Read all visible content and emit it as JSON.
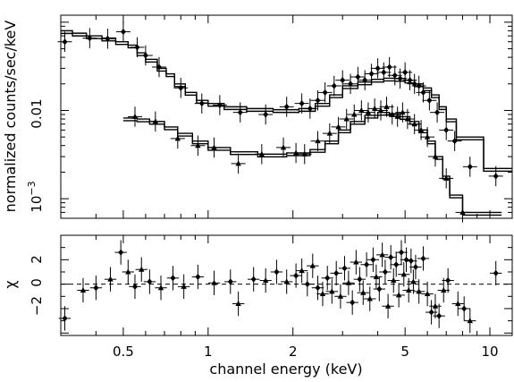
{
  "chart_data": [
    {
      "type": "scatter",
      "panel": "spectrum",
      "title": "",
      "xlabel": "",
      "ylabel": "normalized counts/sec/keV",
      "xscale": "log",
      "yscale": "log",
      "xlim": [
        0.3,
        12.0
      ],
      "ylim": [
        0.0006,
        0.12
      ],
      "y_tick_labels": [
        {
          "value": 0.01,
          "label": "0.01"
        },
        {
          "value": 0.001,
          "label_base": "10",
          "label_exp": "−3"
        }
      ],
      "series": [
        {
          "model_steps": [
            [
              0.3,
              0.08
            ],
            [
              0.33,
              0.075
            ],
            [
              0.37,
              0.07
            ],
            [
              0.42,
              0.066
            ],
            [
              0.47,
              0.06
            ],
            [
              0.52,
              0.055
            ],
            [
              0.56,
              0.045
            ],
            [
              0.6,
              0.038
            ],
            [
              0.66,
              0.03
            ],
            [
              0.71,
              0.026
            ],
            [
              0.76,
              0.02
            ],
            [
              0.83,
              0.016
            ],
            [
              0.91,
              0.013
            ],
            [
              1.0,
              0.012
            ],
            [
              1.14,
              0.011
            ],
            [
              1.37,
              0.0105
            ],
            [
              1.7,
              0.0102
            ],
            [
              2.1,
              0.0105
            ],
            [
              2.4,
              0.012
            ],
            [
              2.7,
              0.015
            ],
            [
              3.0,
              0.019
            ],
            [
              3.4,
              0.021
            ],
            [
              3.8,
              0.0225
            ],
            [
              4.2,
              0.0232
            ],
            [
              4.6,
              0.023
            ],
            [
              5.0,
              0.022
            ],
            [
              5.4,
              0.02
            ],
            [
              5.8,
              0.018
            ],
            [
              6.2,
              0.015
            ],
            [
              6.6,
              0.011
            ],
            [
              7.0,
              0.008
            ],
            [
              7.6,
              0.005
            ],
            [
              9.5,
              0.0022
            ],
            [
              12.0,
              0.0022
            ]
          ],
          "points": [
            {
              "x": 0.31,
              "y": 0.06
            },
            {
              "x": 0.38,
              "y": 0.066
            },
            {
              "x": 0.44,
              "y": 0.065
            },
            {
              "x": 0.5,
              "y": 0.078
            },
            {
              "x": 0.56,
              "y": 0.052
            },
            {
              "x": 0.6,
              "y": 0.042
            },
            {
              "x": 0.67,
              "y": 0.031
            },
            {
              "x": 0.8,
              "y": 0.018
            },
            {
              "x": 0.95,
              "y": 0.012
            },
            {
              "x": 1.1,
              "y": 0.0115
            },
            {
              "x": 1.3,
              "y": 0.0095
            },
            {
              "x": 1.6,
              "y": 0.009
            },
            {
              "x": 1.9,
              "y": 0.011
            },
            {
              "x": 2.15,
              "y": 0.012
            },
            {
              "x": 2.3,
              "y": 0.0105
            },
            {
              "x": 2.45,
              "y": 0.013
            },
            {
              "x": 2.6,
              "y": 0.016
            },
            {
              "x": 2.8,
              "y": 0.019
            },
            {
              "x": 3.0,
              "y": 0.022
            },
            {
              "x": 3.2,
              "y": 0.02
            },
            {
              "x": 3.4,
              "y": 0.024
            },
            {
              "x": 3.6,
              "y": 0.022
            },
            {
              "x": 3.8,
              "y": 0.026
            },
            {
              "x": 4.0,
              "y": 0.03
            },
            {
              "x": 4.2,
              "y": 0.027
            },
            {
              "x": 4.4,
              "y": 0.031
            },
            {
              "x": 4.6,
              "y": 0.025
            },
            {
              "x": 4.8,
              "y": 0.023
            },
            {
              "x": 5.0,
              "y": 0.027
            },
            {
              "x": 5.2,
              "y": 0.022
            },
            {
              "x": 5.4,
              "y": 0.02
            },
            {
              "x": 5.6,
              "y": 0.019
            },
            {
              "x": 5.8,
              "y": 0.016
            },
            {
              "x": 6.1,
              "y": 0.013
            },
            {
              "x": 6.5,
              "y": 0.0095
            },
            {
              "x": 7.0,
              "y": 0.006
            },
            {
              "x": 7.5,
              "y": 0.0045
            },
            {
              "x": 8.5,
              "y": 0.0023
            },
            {
              "x": 10.5,
              "y": 0.0018
            }
          ]
        },
        {
          "model_steps": [
            [
              0.5,
              0.0082
            ],
            [
              0.56,
              0.008
            ],
            [
              0.62,
              0.0075
            ],
            [
              0.7,
              0.0065
            ],
            [
              0.78,
              0.0055
            ],
            [
              0.88,
              0.0045
            ],
            [
              1.0,
              0.0038
            ],
            [
              1.2,
              0.0034
            ],
            [
              1.5,
              0.0032
            ],
            [
              1.9,
              0.0033
            ],
            [
              2.3,
              0.0036
            ],
            [
              2.6,
              0.0045
            ],
            [
              2.9,
              0.006
            ],
            [
              3.2,
              0.0075
            ],
            [
              3.6,
              0.0088
            ],
            [
              4.0,
              0.0095
            ],
            [
              4.4,
              0.0092
            ],
            [
              4.8,
              0.0085
            ],
            [
              5.2,
              0.0075
            ],
            [
              5.6,
              0.006
            ],
            [
              6.0,
              0.0045
            ],
            [
              6.4,
              0.003
            ],
            [
              6.8,
              0.0018
            ],
            [
              7.2,
              0.0011
            ],
            [
              8.0,
              0.0007
            ],
            [
              11.0,
              0.0007
            ]
          ],
          "points": [
            {
              "x": 0.55,
              "y": 0.0085
            },
            {
              "x": 0.65,
              "y": 0.0075
            },
            {
              "x": 0.78,
              "y": 0.0048
            },
            {
              "x": 0.92,
              "y": 0.004
            },
            {
              "x": 1.05,
              "y": 0.0038
            },
            {
              "x": 1.28,
              "y": 0.0025
            },
            {
              "x": 1.55,
              "y": 0.0032
            },
            {
              "x": 1.85,
              "y": 0.0038
            },
            {
              "x": 2.05,
              "y": 0.0033
            },
            {
              "x": 2.2,
              "y": 0.0032
            },
            {
              "x": 2.45,
              "y": 0.0045
            },
            {
              "x": 2.7,
              "y": 0.0055
            },
            {
              "x": 2.9,
              "y": 0.0065
            },
            {
              "x": 3.1,
              "y": 0.008
            },
            {
              "x": 3.3,
              "y": 0.009
            },
            {
              "x": 3.5,
              "y": 0.01
            },
            {
              "x": 3.7,
              "y": 0.0095
            },
            {
              "x": 3.9,
              "y": 0.0105
            },
            {
              "x": 4.1,
              "y": 0.01
            },
            {
              "x": 4.3,
              "y": 0.011
            },
            {
              "x": 4.5,
              "y": 0.009
            },
            {
              "x": 4.7,
              "y": 0.0085
            },
            {
              "x": 4.9,
              "y": 0.0095
            },
            {
              "x": 5.1,
              "y": 0.008
            },
            {
              "x": 5.4,
              "y": 0.007
            },
            {
              "x": 5.7,
              "y": 0.006
            },
            {
              "x": 6.0,
              "y": 0.005
            },
            {
              "x": 6.4,
              "y": 0.003
            },
            {
              "x": 7.0,
              "y": 0.0017
            },
            {
              "x": 8.0,
              "y": 0.0007
            }
          ]
        }
      ]
    },
    {
      "type": "scatter",
      "panel": "residuals",
      "title": "",
      "xlabel": "channel energy (keV)",
      "ylabel": "χ",
      "xscale": "log",
      "xlim": [
        0.3,
        12.0
      ],
      "ylim": [
        -4.2,
        4.0
      ],
      "x_tick_labels": [
        "0.5",
        "1",
        "2",
        "5",
        "10"
      ],
      "x_tick_values": [
        0.5,
        1,
        2,
        5,
        10
      ],
      "y_tick_labels": [
        "−2",
        "0",
        "2"
      ],
      "y_tick_values": [
        -2,
        0,
        2
      ],
      "points": [
        {
          "x": 0.31,
          "y": -2.8
        },
        {
          "x": 0.36,
          "y": -0.5
        },
        {
          "x": 0.4,
          "y": -0.3
        },
        {
          "x": 0.45,
          "y": 0.4
        },
        {
          "x": 0.49,
          "y": 2.6
        },
        {
          "x": 0.52,
          "y": 1.0
        },
        {
          "x": 0.55,
          "y": -0.2
        },
        {
          "x": 0.58,
          "y": 1.2
        },
        {
          "x": 0.62,
          "y": 0.2
        },
        {
          "x": 0.68,
          "y": -0.3
        },
        {
          "x": 0.75,
          "y": 0.5
        },
        {
          "x": 0.82,
          "y": -0.2
        },
        {
          "x": 0.92,
          "y": 0.6
        },
        {
          "x": 1.05,
          "y": 0.1
        },
        {
          "x": 1.2,
          "y": 0.2
        },
        {
          "x": 1.28,
          "y": -1.6
        },
        {
          "x": 1.45,
          "y": 0.4
        },
        {
          "x": 1.6,
          "y": 0.3
        },
        {
          "x": 1.75,
          "y": 1.0
        },
        {
          "x": 1.9,
          "y": 0.2
        },
        {
          "x": 2.05,
          "y": 0.7
        },
        {
          "x": 2.15,
          "y": 1.1
        },
        {
          "x": 2.25,
          "y": 0.0
        },
        {
          "x": 2.35,
          "y": 1.5
        },
        {
          "x": 2.45,
          "y": -0.3
        },
        {
          "x": 2.55,
          "y": -0.8
        },
        {
          "x": 2.65,
          "y": 0.5
        },
        {
          "x": 2.75,
          "y": -0.6
        },
        {
          "x": 2.85,
          "y": 0.9
        },
        {
          "x": 2.95,
          "y": -1.0
        },
        {
          "x": 3.05,
          "y": 1.3
        },
        {
          "x": 3.15,
          "y": 0.1
        },
        {
          "x": 3.25,
          "y": -1.5
        },
        {
          "x": 3.35,
          "y": 1.8
        },
        {
          "x": 3.45,
          "y": 0.4
        },
        {
          "x": 3.55,
          "y": -0.7
        },
        {
          "x": 3.65,
          "y": 1.6
        },
        {
          "x": 3.75,
          "y": -1.2
        },
        {
          "x": 3.85,
          "y": 2.0
        },
        {
          "x": 3.95,
          "y": 0.6
        },
        {
          "x": 4.05,
          "y": -0.4
        },
        {
          "x": 4.15,
          "y": 2.4
        },
        {
          "x": 4.25,
          "y": 1.0
        },
        {
          "x": 4.35,
          "y": -1.8
        },
        {
          "x": 4.45,
          "y": 2.2
        },
        {
          "x": 4.55,
          "y": 0.3
        },
        {
          "x": 4.65,
          "y": 1.6
        },
        {
          "x": 4.75,
          "y": -0.9
        },
        {
          "x": 4.85,
          "y": 2.6
        },
        {
          "x": 4.95,
          "y": 0.8
        },
        {
          "x": 5.05,
          "y": 2.0
        },
        {
          "x": 5.15,
          "y": -0.5
        },
        {
          "x": 5.25,
          "y": 1.9
        },
        {
          "x": 5.35,
          "y": 0.2
        },
        {
          "x": 5.45,
          "y": 1.4
        },
        {
          "x": 5.6,
          "y": -0.6
        },
        {
          "x": 5.8,
          "y": 2.1
        },
        {
          "x": 6.0,
          "y": -0.8
        },
        {
          "x": 6.2,
          "y": -2.3
        },
        {
          "x": 6.4,
          "y": -1.8
        },
        {
          "x": 6.6,
          "y": -2.6
        },
        {
          "x": 6.85,
          "y": -0.5
        },
        {
          "x": 7.1,
          "y": 0.3
        },
        {
          "x": 7.7,
          "y": -1.6
        },
        {
          "x": 8.1,
          "y": -2.0
        },
        {
          "x": 8.5,
          "y": -3.0
        },
        {
          "x": 10.5,
          "y": 0.9
        }
      ]
    }
  ]
}
